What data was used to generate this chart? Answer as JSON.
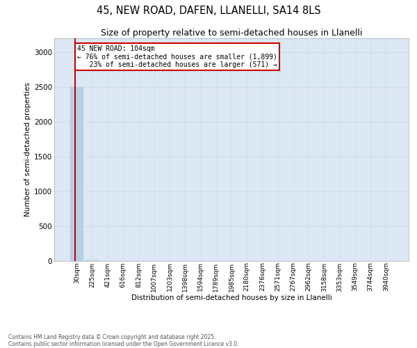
{
  "title_line1": "45, NEW ROAD, DAFEN, LLANELLI, SA14 8LS",
  "title_line2": "Size of property relative to semi-detached houses in Llanelli",
  "xlabel": "Distribution of semi-detached houses by size in Llanelli",
  "ylabel": "Number of semi-detached properties",
  "categories": [
    "30sqm",
    "225sqm",
    "421sqm",
    "616sqm",
    "812sqm",
    "1007sqm",
    "1203sqm",
    "1398sqm",
    "1594sqm",
    "1789sqm",
    "1985sqm",
    "2180sqm",
    "2376sqm",
    "2571sqm",
    "2767sqm",
    "2962sqm",
    "3158sqm",
    "3353sqm",
    "3549sqm",
    "3744sqm",
    "3940sqm"
  ],
  "values": [
    2500,
    10,
    3,
    2,
    1,
    1,
    1,
    1,
    1,
    1,
    1,
    1,
    1,
    1,
    1,
    1,
    1,
    1,
    1,
    1,
    1
  ],
  "bar_color": "#b8cfe8",
  "bar_edge_color": "#b8cfe8",
  "grid_color": "#ccdaeb",
  "background_color": "#dce8f4",
  "ann_line1": "45 NEW ROAD: 104sqm",
  "ann_line2": "← 76% of semi-detached houses are smaller (1,899)",
  "ann_line3": "   23% of semi-detached houses are larger (571) →",
  "ann_box_edgecolor": "#cc0000",
  "red_line_color": "#cc0000",
  "ylim": [
    0,
    3200
  ],
  "yticks": [
    0,
    500,
    1000,
    1500,
    2000,
    2500,
    3000
  ],
  "footnote_line1": "Contains HM Land Registry data © Crown copyright and database right 2025.",
  "footnote_line2": "Contains public sector information licensed under the Open Government Licence v3.0.",
  "title_fontsize": 10.5,
  "subtitle_fontsize": 9,
  "ylabel_fontsize": 7.5,
  "xlabel_fontsize": 7.5,
  "ytick_fontsize": 7.5,
  "xtick_fontsize": 6.5,
  "ann_fontsize": 7,
  "footnote_fontsize": 5.5
}
